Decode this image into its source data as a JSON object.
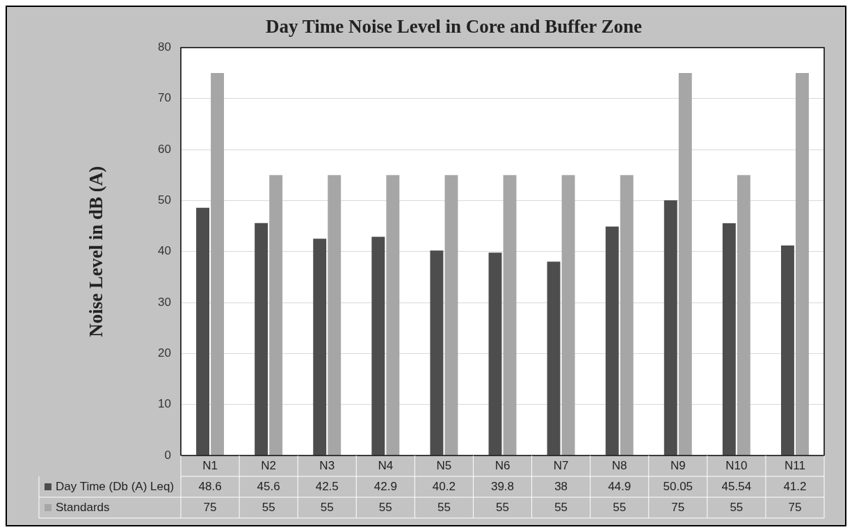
{
  "chart_data": {
    "type": "bar",
    "title": "Day Time Noise Level in Core and Buffer Zone",
    "ylabel": "Noise Level in dB (A)",
    "categories": [
      "N1",
      "N2",
      "N3",
      "N4",
      "N5",
      "N6",
      "N7",
      "N8",
      "N9",
      "N10",
      "N11"
    ],
    "series": [
      {
        "name": "Day Time (Db (A) Leq)",
        "color": "#4d4d4d",
        "values": [
          48.6,
          45.6,
          42.5,
          42.9,
          40.2,
          39.8,
          38,
          44.9,
          50.05,
          45.54,
          41.2
        ]
      },
      {
        "name": "Standards",
        "color": "#a6a6a6",
        "values": [
          75,
          55,
          55,
          55,
          55,
          55,
          55,
          55,
          75,
          55,
          75
        ]
      }
    ],
    "ylim": [
      0,
      80
    ],
    "yticks": [
      0,
      10,
      20,
      30,
      40,
      50,
      60,
      70,
      80
    ],
    "grid": "y",
    "legend": "bottom",
    "data_labels": true
  }
}
